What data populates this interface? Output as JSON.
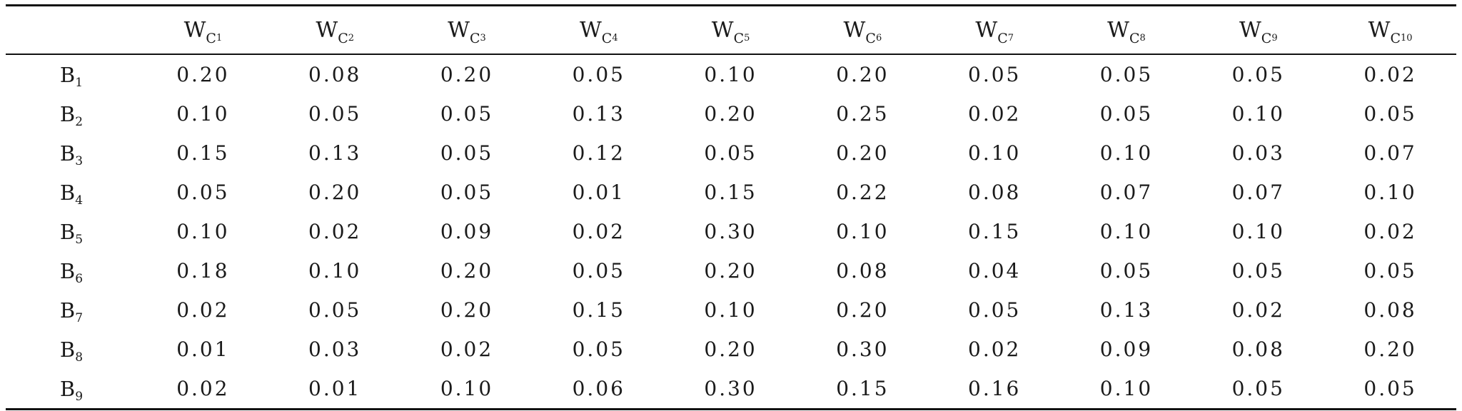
{
  "table": {
    "corner": "",
    "columns": [
      {
        "base": "W",
        "sub": "C",
        "subsub": "1"
      },
      {
        "base": "W",
        "sub": "C",
        "subsub": "2"
      },
      {
        "base": "W",
        "sub": "C",
        "subsub": "3"
      },
      {
        "base": "W",
        "sub": "C",
        "subsub": "4"
      },
      {
        "base": "W",
        "sub": "C",
        "subsub": "5"
      },
      {
        "base": "W",
        "sub": "C",
        "subsub": "6"
      },
      {
        "base": "W",
        "sub": "C",
        "subsub": "7"
      },
      {
        "base": "W",
        "sub": "C",
        "subsub": "8"
      },
      {
        "base": "W",
        "sub": "C",
        "subsub": "9"
      },
      {
        "base": "W",
        "sub": "C",
        "subsub": "10"
      }
    ],
    "rows": [
      {
        "label": {
          "base": "B",
          "sub": "1"
        },
        "values": [
          "0.20",
          "0.08",
          "0.20",
          "0.05",
          "0.10",
          "0.20",
          "0.05",
          "0.05",
          "0.05",
          "0.02"
        ]
      },
      {
        "label": {
          "base": "B",
          "sub": "2"
        },
        "values": [
          "0.10",
          "0.05",
          "0.05",
          "0.13",
          "0.20",
          "0.25",
          "0.02",
          "0.05",
          "0.10",
          "0.05"
        ]
      },
      {
        "label": {
          "base": "B",
          "sub": "3"
        },
        "values": [
          "0.15",
          "0.13",
          "0.05",
          "0.12",
          "0.05",
          "0.20",
          "0.10",
          "0.10",
          "0.03",
          "0.07"
        ]
      },
      {
        "label": {
          "base": "B",
          "sub": "4"
        },
        "values": [
          "0.05",
          "0.20",
          "0.05",
          "0.01",
          "0.15",
          "0.22",
          "0.08",
          "0.07",
          "0.07",
          "0.10"
        ]
      },
      {
        "label": {
          "base": "B",
          "sub": "5"
        },
        "values": [
          "0.10",
          "0.02",
          "0.09",
          "0.02",
          "0.30",
          "0.10",
          "0.15",
          "0.10",
          "0.10",
          "0.02"
        ]
      },
      {
        "label": {
          "base": "B",
          "sub": "6"
        },
        "values": [
          "0.18",
          "0.10",
          "0.20",
          "0.05",
          "0.20",
          "0.08",
          "0.04",
          "0.05",
          "0.05",
          "0.05"
        ]
      },
      {
        "label": {
          "base": "B",
          "sub": "7"
        },
        "values": [
          "0.02",
          "0.05",
          "0.20",
          "0.15",
          "0.10",
          "0.20",
          "0.05",
          "0.13",
          "0.02",
          "0.08"
        ]
      },
      {
        "label": {
          "base": "B",
          "sub": "8"
        },
        "values": [
          "0.01",
          "0.03",
          "0.02",
          "0.05",
          "0.20",
          "0.30",
          "0.02",
          "0.09",
          "0.08",
          "0.20"
        ]
      },
      {
        "label": {
          "base": "B",
          "sub": "9"
        },
        "values": [
          "0.02",
          "0.01",
          "0.10",
          "0.06",
          "0.30",
          "0.15",
          "0.16",
          "0.10",
          "0.05",
          "0.05"
        ]
      }
    ]
  }
}
